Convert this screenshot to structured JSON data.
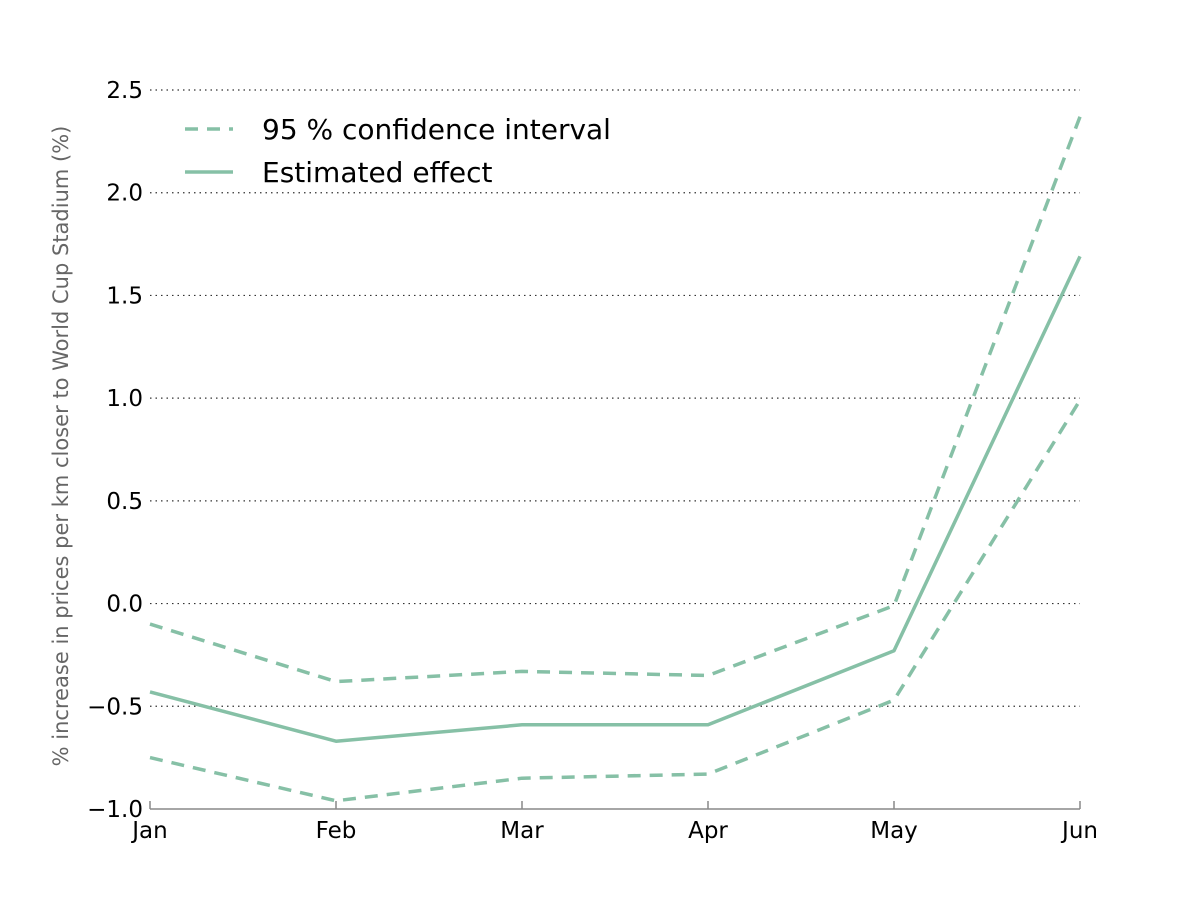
{
  "colors": {
    "series": "#86c0a6",
    "grid": "#333333",
    "axis": "#888888",
    "ylabel": "#666666",
    "text": "#000000"
  },
  "chart_data": {
    "type": "line",
    "title": "",
    "xlabel": "",
    "ylabel": "% increase in prices per km closer to World Cup Stadium (%)",
    "x": [
      "Jan",
      "Feb",
      "Mar",
      "Apr",
      "May",
      "Jun"
    ],
    "ylim": [
      -1.0,
      2.5
    ],
    "yticks": [
      "−1.0",
      "−0.5",
      "0.0",
      "0.5",
      "1.0",
      "1.5",
      "2.0",
      "2.5"
    ],
    "ytick_values": [
      -1.0,
      -0.5,
      0.0,
      0.5,
      1.0,
      1.5,
      2.0,
      2.5
    ],
    "grid": "horizontal dotted",
    "legend_position": "top-left",
    "series": [
      {
        "name": "Estimated effect",
        "style": "solid",
        "values": [
          -0.43,
          -0.67,
          -0.59,
          -0.59,
          -0.23,
          1.69
        ]
      },
      {
        "name": "95 % confidence interval",
        "style": "dashed",
        "values": [
          -0.1,
          -0.38,
          -0.33,
          -0.35,
          -0.01,
          2.37
        ]
      },
      {
        "name": "95 % confidence interval",
        "style": "dashed",
        "values": [
          -0.75,
          -0.96,
          -0.85,
          -0.83,
          -0.47,
          0.99
        ]
      }
    ],
    "legend": [
      {
        "label": "95 % confidence interval",
        "style": "dashed"
      },
      {
        "label": "Estimated effect",
        "style": "solid"
      }
    ]
  }
}
